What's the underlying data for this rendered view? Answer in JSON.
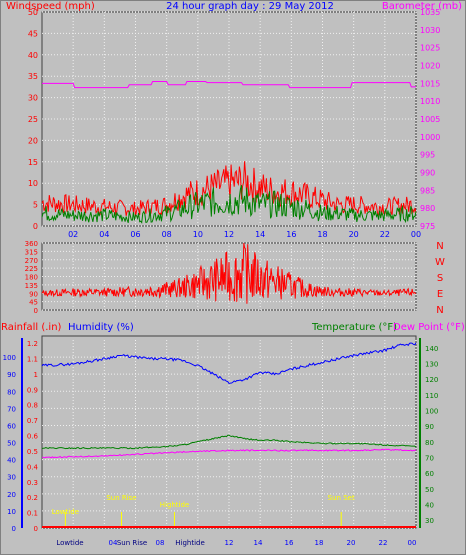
{
  "header": {
    "title": "24 hour graph day : 29 May 2012",
    "left_label": "Windspeed (mph)",
    "right_label": "Barometer (mb)"
  },
  "chart_data": [
    {
      "type": "line",
      "title": "24 hour graph day : 29 May 2012",
      "ylabel": "Windspeed (mph)",
      "y2label": "Barometer (mb)",
      "x_ticks": [
        "02",
        "04",
        "06",
        "08",
        "10",
        "12",
        "14",
        "16",
        "18",
        "20",
        "22",
        "00"
      ],
      "ylim": [
        0,
        50
      ],
      "y_ticks": [
        "0",
        "5",
        "10",
        "15",
        "20",
        "25",
        "30",
        "35",
        "40",
        "45",
        "50"
      ],
      "y2lim": [
        975,
        1035
      ],
      "y2_ticks": [
        "975",
        "980",
        "985",
        "990",
        "995",
        "1000",
        "1005",
        "1010",
        "1015",
        "1020",
        "1025",
        "1030",
        "1035"
      ],
      "series": [
        {
          "name": "Barometer (mb)",
          "axis": "y2",
          "color": "#ff00ff",
          "x": [
            0,
            2,
            2.1,
            5.5,
            5.6,
            7,
            7.1,
            8,
            8.1,
            9.2,
            9.3,
            10.5,
            10.6,
            12.8,
            12.9,
            14.8,
            14.9,
            15.8,
            15.9,
            19.8,
            19.9,
            23.6,
            23.7,
            24
          ],
          "values": [
            1015,
            1015,
            1013.8,
            1013.8,
            1014.6,
            1014.6,
            1015.5,
            1015.5,
            1014.6,
            1014.6,
            1015.5,
            1015.5,
            1015.2,
            1015.2,
            1014.6,
            1014.6,
            1014.6,
            1014.6,
            1013.8,
            1013.8,
            1015.2,
            1015.2,
            1014,
            1014
          ]
        },
        {
          "name": "Windspeed gust",
          "axis": "y",
          "color": "#ff0000",
          "x": [
            0,
            2,
            4,
            6,
            8,
            9,
            10,
            11,
            12,
            13,
            14,
            15,
            16,
            17,
            18,
            19,
            20,
            22,
            24
          ],
          "values": [
            5.5,
            5,
            4.5,
            4,
            5,
            7,
            8,
            9,
            10,
            10.5,
            9,
            8,
            8,
            7,
            6,
            5,
            5,
            4.5,
            5
          ]
        },
        {
          "name": "Windspeed average",
          "axis": "y",
          "color": "#008000",
          "x": [
            0,
            2,
            4,
            6,
            8,
            9,
            10,
            11,
            12,
            13,
            14,
            15,
            16,
            17,
            18,
            19,
            20,
            22,
            24
          ],
          "values": [
            3,
            2.5,
            2.5,
            2,
            3,
            4,
            5,
            5.5,
            6,
            6,
            5,
            5,
            4.5,
            4,
            3,
            3,
            2.5,
            2.5,
            3
          ]
        }
      ]
    },
    {
      "type": "scatter",
      "ylabel": "Wind direction",
      "ylim": [
        0,
        360
      ],
      "y_ticks": [
        "0",
        "45",
        "90",
        "135",
        "180",
        "225",
        "270",
        "315",
        "360"
      ],
      "right_labels": [
        "N",
        "W",
        "S",
        "E",
        "N"
      ],
      "series": [
        {
          "name": "Wind direction",
          "color": "#ff0000",
          "x": [
            0,
            2,
            4,
            6,
            8,
            9,
            10,
            11,
            12,
            13,
            14,
            15,
            16,
            17,
            18,
            19,
            20,
            22,
            24
          ],
          "values": [
            90,
            95,
            95,
            100,
            110,
            120,
            140,
            160,
            180,
            200,
            170,
            150,
            130,
            110,
            100,
            95,
            95,
            90,
            95
          ]
        }
      ]
    },
    {
      "type": "line",
      "labels": {
        "rainfall": "Rainfall (.in)",
        "humidity": "Humidity (%)",
        "temperature": "Temperature (°F)",
        "dewpoint": "Dew Point (°F)"
      },
      "rain_ticks": [
        "0",
        "0.1",
        "0.2",
        "0.3",
        "0.4",
        "0.5",
        "0.6",
        "0.7",
        "0.8",
        "0.9",
        "1",
        "1.1",
        "1.2"
      ],
      "humidity_ticks": [
        "0",
        "10",
        "20",
        "30",
        "40",
        "50",
        "60",
        "70",
        "80",
        "90",
        "100"
      ],
      "temp_ticks": [
        "30",
        "40",
        "50",
        "60",
        "70",
        "80",
        "90",
        "100",
        "110",
        "120",
        "130",
        "140"
      ],
      "x_ticks": [
        "02",
        "04",
        "06",
        "08",
        "10",
        "12",
        "14",
        "16",
        "18",
        "20",
        "22",
        "00"
      ],
      "bottom_labels": [
        "Lowtide",
        "Sun Rise",
        "Hightide",
        "Sun Set"
      ],
      "markers": [
        {
          "label": "Lowtide",
          "x": 1.5
        },
        {
          "label": "Sun Rise",
          "x": 5.1
        },
        {
          "label": "Hightide",
          "x": 8.5
        },
        {
          "label": "Sun Set",
          "x": 19.2
        }
      ],
      "series": [
        {
          "name": "Humidity (%)",
          "axis": "humidity",
          "color": "#0000ff",
          "x": [
            0,
            2,
            4,
            5,
            6,
            7,
            8,
            9,
            10,
            11,
            12,
            13,
            14,
            15,
            16,
            17,
            18,
            20,
            22,
            23,
            24
          ],
          "values": [
            95,
            96,
            99,
            101,
            100,
            99,
            99,
            98,
            95,
            90,
            85,
            87,
            91,
            90,
            93,
            95,
            97,
            101,
            104,
            107,
            108
          ]
        },
        {
          "name": "Temperature (°F)",
          "axis": "temp",
          "color": "#008000",
          "x": [
            0,
            2,
            4,
            6,
            8,
            9,
            10,
            11,
            12,
            13,
            14,
            15,
            16,
            18,
            20,
            22,
            24
          ],
          "values": [
            76,
            76,
            76,
            76,
            77,
            78,
            80,
            82,
            84,
            82,
            81,
            81,
            80,
            79,
            79,
            78,
            77
          ]
        },
        {
          "name": "Dew Point (°F)",
          "axis": "temp",
          "color": "#ff00ff",
          "x": [
            0,
            2,
            4,
            6,
            8,
            10,
            12,
            14,
            16,
            18,
            20,
            22,
            24
          ],
          "values": [
            70,
            70.5,
            71,
            72,
            73,
            74,
            74.5,
            74.5,
            74.5,
            74.5,
            74.5,
            75,
            74.5
          ]
        },
        {
          "name": "Rainfall (.in)",
          "axis": "rain",
          "color": "#ff0000",
          "x": [
            0,
            24
          ],
          "values": [
            0,
            0
          ]
        }
      ]
    }
  ]
}
